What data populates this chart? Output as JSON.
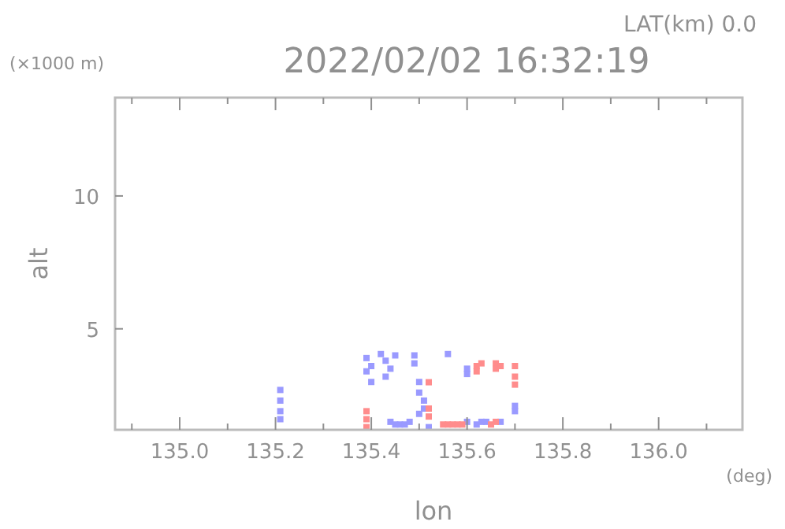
{
  "chart_data": {
    "type": "scatter",
    "title": "2022/02/02 16:32:19",
    "xlabel": "lon",
    "ylabel": "alt",
    "annotations": [
      "LAT(km) 0.0",
      "(×1000 m)",
      "(deg)"
    ],
    "xlim": [
      134.865,
      136.175
    ],
    "xticks": [
      {
        "value": 134.9,
        "label": null
      },
      {
        "value": 135.0,
        "label": "135.0"
      },
      {
        "value": 135.1,
        "label": null
      },
      {
        "value": 135.2,
        "label": "135.2"
      },
      {
        "value": 135.3,
        "label": null
      },
      {
        "value": 135.4,
        "label": "135.4"
      },
      {
        "value": 135.5,
        "label": null
      },
      {
        "value": 135.6,
        "label": "135.6"
      },
      {
        "value": 135.7,
        "label": null
      },
      {
        "value": 135.8,
        "label": "135.8"
      },
      {
        "value": 135.9,
        "label": null
      },
      {
        "value": 136.0,
        "label": "136.0"
      },
      {
        "value": 136.1,
        "label": null
      }
    ],
    "ylim": [
      1.2,
      13.7
    ],
    "yticks": [
      5,
      10
    ],
    "marker": "square",
    "grid": false,
    "series": [
      {
        "color": "#9a9aff",
        "x": [
          135.21,
          135.21,
          135.21,
          135.21,
          135.39,
          135.39,
          135.4,
          135.4,
          135.42,
          135.43,
          135.44,
          135.45,
          135.43,
          135.49,
          135.49,
          135.56,
          135.6,
          135.6,
          135.44,
          135.45,
          135.46,
          135.47,
          135.48,
          135.5,
          135.5,
          135.51,
          135.51,
          135.52,
          135.5,
          135.6,
          135.62,
          135.63,
          135.64,
          135.67,
          135.7,
          135.7
        ],
        "values": [
          2.7,
          2.3,
          1.9,
          1.6,
          3.9,
          3.4,
          3.0,
          3.6,
          4.05,
          3.8,
          3.5,
          4.0,
          3.2,
          4.0,
          3.7,
          4.05,
          3.5,
          3.3,
          1.5,
          1.4,
          1.4,
          1.4,
          1.5,
          3.0,
          2.6,
          2.3,
          2.0,
          1.3,
          1.8,
          1.5,
          1.4,
          1.5,
          1.5,
          1.5,
          1.9,
          2.1
        ]
      },
      {
        "color": "#ff8c8c",
        "x": [
          135.39,
          135.39,
          135.39,
          135.52,
          135.52,
          135.52,
          135.55,
          135.56,
          135.57,
          135.58,
          135.59,
          135.62,
          135.62,
          135.63,
          135.66,
          135.66,
          135.67,
          135.7,
          135.7,
          135.7,
          135.66,
          135.65
        ],
        "values": [
          1.9,
          1.6,
          1.3,
          2.99,
          2.0,
          1.7,
          1.4,
          1.4,
          1.4,
          1.4,
          1.4,
          3.6,
          3.4,
          3.7,
          3.7,
          3.5,
          3.6,
          3.6,
          3.2,
          2.9,
          1.5,
          1.4
        ]
      }
    ]
  }
}
